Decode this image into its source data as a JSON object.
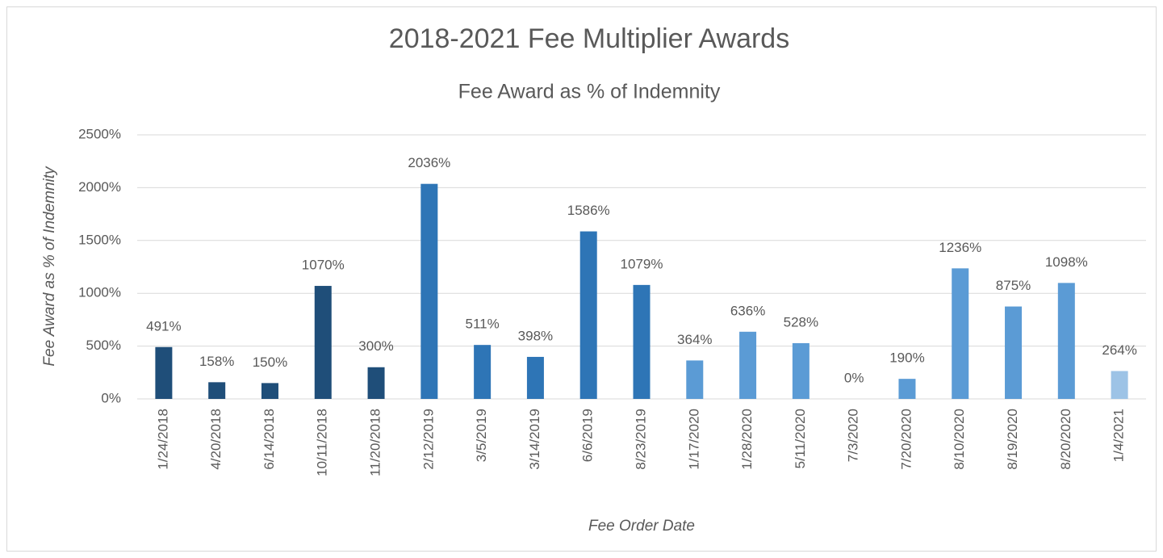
{
  "chart_data": {
    "type": "bar",
    "title": "2018-2021 Fee Multiplier Awards",
    "subtitle": "Fee Award as % of Indemnity",
    "y_label": "Fee Award as % of Indemnity",
    "x_label": "Fee Order Date",
    "categories": [
      "1/24/2018",
      "4/20/2018",
      "6/14/2018",
      "10/11/2018",
      "11/20/2018",
      "2/12/2019",
      "3/5/2019",
      "3/14/2019",
      "6/6/2019",
      "8/23/2019",
      "1/17/2020",
      "1/28/2020",
      "5/11/2020",
      "7/3/2020",
      "7/20/2020",
      "8/10/2020",
      "8/19/2020",
      "8/20/2020",
      "1/4/2021"
    ],
    "values": [
      491,
      158,
      150,
      1070,
      300,
      2036,
      511,
      398,
      1586,
      1079,
      364,
      636,
      528,
      0,
      190,
      1236,
      875,
      1098,
      264
    ],
    "value_labels": [
      "491%",
      "158%",
      "150%",
      "1070%",
      "300%",
      "2036%",
      "511%",
      "398%",
      "1586%",
      "1079%",
      "364%",
      "636%",
      "528%",
      "0%",
      "190%",
      "1236%",
      "875%",
      "1098%",
      "264%"
    ],
    "colors": [
      "#1f4e79",
      "#1f4e79",
      "#1f4e79",
      "#1f4e79",
      "#1f4e79",
      "#2e75b6",
      "#2e75b6",
      "#2e75b6",
      "#2e75b6",
      "#2e75b6",
      "#5b9bd5",
      "#5b9bd5",
      "#5b9bd5",
      "#5b9bd5",
      "#5b9bd5",
      "#5b9bd5",
      "#5b9bd5",
      "#5b9bd5",
      "#9dc3e6"
    ],
    "ylim": [
      0,
      2500
    ],
    "yticks": [
      {
        "value": 0,
        "label": "0%"
      },
      {
        "value": 500,
        "label": "500%"
      },
      {
        "value": 1000,
        "label": "1000%"
      },
      {
        "value": 1500,
        "label": "1500%"
      },
      {
        "value": 2000,
        "label": "2000%"
      },
      {
        "value": 2500,
        "label": "2500%"
      }
    ],
    "grid": true
  }
}
